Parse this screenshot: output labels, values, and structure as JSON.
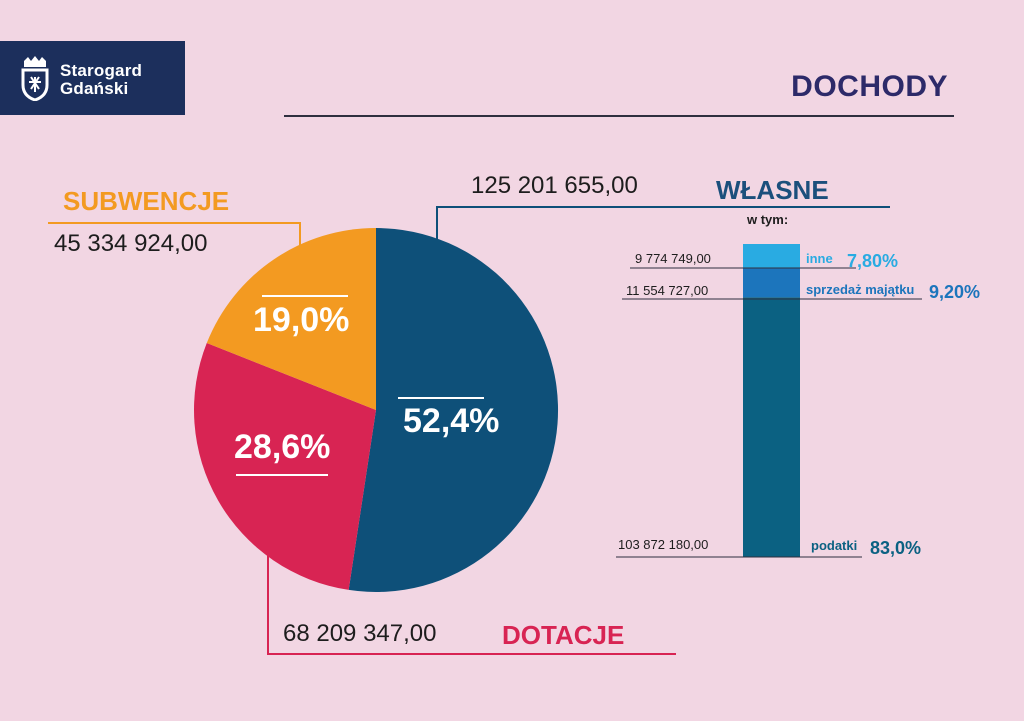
{
  "logo": {
    "line1": "Starogard",
    "line2": "Gdański"
  },
  "title": "DOCHODY",
  "colors": {
    "wlasne": "#0e5079",
    "dotacje": "#d82453",
    "subwencje": "#f39a21",
    "inne": "#29abe2",
    "sprzedaz": "#1c75bc",
    "podatki": "#0b6182",
    "title": "#2d2a69",
    "wlasne_label": "#1b4f7c"
  },
  "chart_data": [
    {
      "type": "pie",
      "slices": [
        {
          "name": "WŁASNE",
          "amount": "125 201 655,00",
          "value": 52.4,
          "pct_label": "52,4%"
        },
        {
          "name": "DOTACJE",
          "amount": "68 209 347,00",
          "value": 28.6,
          "pct_label": "28,6%"
        },
        {
          "name": "SUBWENCJE",
          "amount": "45 334 924,00",
          "value": 19.0,
          "pct_label": "19,0%"
        }
      ]
    },
    {
      "type": "bar",
      "stacked": true,
      "header": "w tym:",
      "segments": [
        {
          "name": "podatki",
          "amount": "103 872 180,00",
          "value": 83.0,
          "pct_label": "83,0%"
        },
        {
          "name": "sprzedaż majątku",
          "amount": "11 554 727,00",
          "value": 9.2,
          "pct_label": "9,20%"
        },
        {
          "name": "inne",
          "amount": "9 774 749,00",
          "value": 7.8,
          "pct_label": "7,80%"
        }
      ]
    }
  ]
}
